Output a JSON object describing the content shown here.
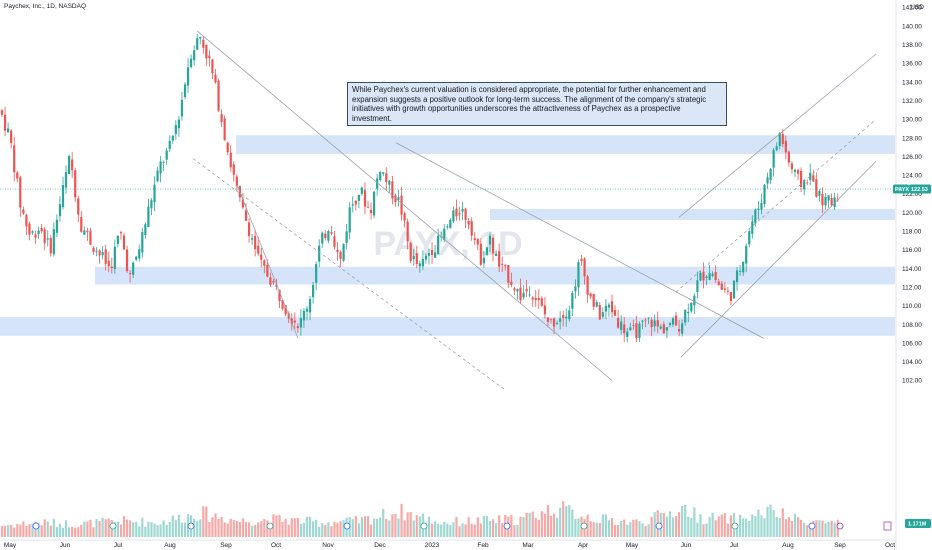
{
  "header": {
    "title": "Paychex, Inc., 1D, NASDAQ",
    "currency": "USD"
  },
  "watermark": {
    "text": "PAYX, 1D"
  },
  "note": {
    "text": "While Paychex's current valuation is considered appropriate, the potential for further enhancement and expansion suggests a positive outlook for long-term success. The alignment of the company's strategic initiatives with growth opportunities underscores the attractiveness of Paychex as a prospective investment."
  },
  "price_tag": {
    "symbol": "PAYX",
    "value": "122.53"
  },
  "volume_tag": {
    "value": "1.171M"
  },
  "colors": {
    "up": "#26a69a",
    "down": "#ef5350",
    "zone": "#d6e4f9",
    "line": "#9aa0ab",
    "current": "#26a69a",
    "tag_bg": "#26a69a",
    "vol_tag_bg": "#26a69a"
  },
  "chart_data": {
    "type": "candlestick",
    "y_axis": {
      "ticks": [
        "142.00",
        "140.00",
        "138.00",
        "136.00",
        "134.00",
        "132.00",
        "130.00",
        "128.00",
        "126.00",
        "124.00",
        "122.00",
        "120.00",
        "118.00",
        "116.00",
        "114.00",
        "112.00",
        "110.00",
        "108.00",
        "106.00",
        "104.00",
        "102.00"
      ],
      "range": [
        101,
        143
      ]
    },
    "x_axis": {
      "ticks": [
        "May",
        "Jun",
        "Jul",
        "Aug",
        "Sep",
        "Oct",
        "Nov",
        "Dec",
        "2023",
        "Feb",
        "Mar",
        "Apr",
        "May",
        "Jun",
        "Jul",
        "Aug",
        "Sep",
        "Oct"
      ]
    },
    "current_price": 122.53,
    "zones": [
      {
        "low": 126.3,
        "high": 128.3
      },
      {
        "low": 119.2,
        "high": 120.4
      },
      {
        "low": 112.3,
        "high": 114.2
      },
      {
        "low": 106.8,
        "high": 108.8
      }
    ],
    "price_path": [
      [
        0,
        131
      ],
      [
        10,
        128
      ],
      [
        20,
        121
      ],
      [
        30,
        117.5
      ],
      [
        40,
        118.5
      ],
      [
        50,
        116
      ],
      [
        60,
        121
      ],
      [
        70,
        126
      ],
      [
        80,
        119
      ],
      [
        90,
        117
      ],
      [
        100,
        115.5
      ],
      [
        110,
        114
      ],
      [
        120,
        118
      ],
      [
        130,
        113
      ],
      [
        140,
        116.5
      ],
      [
        150,
        121
      ],
      [
        160,
        125
      ],
      [
        170,
        127
      ],
      [
        180,
        131
      ],
      [
        190,
        137
      ],
      [
        200,
        139
      ],
      [
        210,
        136
      ],
      [
        220,
        131
      ],
      [
        230,
        125.5
      ],
      [
        240,
        121
      ],
      [
        250,
        118
      ],
      [
        260,
        114.5
      ],
      [
        270,
        113
      ],
      [
        280,
        111
      ],
      [
        290,
        109
      ],
      [
        300,
        108
      ],
      [
        310,
        111
      ],
      [
        320,
        116.5
      ],
      [
        330,
        119
      ],
      [
        340,
        114.5
      ],
      [
        350,
        120.5
      ],
      [
        360,
        122.5
      ],
      [
        370,
        120
      ],
      [
        380,
        125
      ],
      [
        390,
        122.5
      ],
      [
        400,
        121
      ],
      [
        410,
        115.5
      ],
      [
        420,
        114
      ],
      [
        430,
        116
      ],
      [
        440,
        117
      ],
      [
        450,
        119
      ],
      [
        460,
        120.5
      ],
      [
        470,
        119
      ],
      [
        480,
        115
      ],
      [
        490,
        117
      ],
      [
        500,
        114
      ],
      [
        510,
        113
      ],
      [
        520,
        111
      ],
      [
        530,
        112
      ],
      [
        540,
        110
      ],
      [
        550,
        108
      ],
      [
        560,
        109
      ],
      [
        570,
        110
      ],
      [
        580,
        115
      ],
      [
        590,
        111
      ],
      [
        600,
        109
      ],
      [
        610,
        110
      ],
      [
        620,
        108
      ],
      [
        630,
        107
      ],
      [
        640,
        107.5
      ],
      [
        650,
        108.5
      ],
      [
        660,
        107.5
      ],
      [
        670,
        108
      ],
      [
        680,
        108
      ],
      [
        690,
        110.5
      ],
      [
        700,
        113
      ],
      [
        710,
        114
      ],
      [
        720,
        112
      ],
      [
        730,
        111
      ],
      [
        740,
        114
      ],
      [
        750,
        118.5
      ],
      [
        760,
        121
      ],
      [
        770,
        125
      ],
      [
        780,
        128.5
      ],
      [
        790,
        125
      ],
      [
        800,
        123
      ],
      [
        810,
        124
      ],
      [
        820,
        121.5
      ],
      [
        830,
        121
      ],
      [
        840,
        122.53
      ]
    ],
    "volume_path": [
      [
        0,
        0.35
      ],
      [
        40,
        0.45
      ],
      [
        80,
        0.4
      ],
      [
        120,
        0.5
      ],
      [
        160,
        0.45
      ],
      [
        200,
        0.75
      ],
      [
        240,
        0.5
      ],
      [
        280,
        0.55
      ],
      [
        320,
        0.45
      ],
      [
        360,
        0.5
      ],
      [
        400,
        0.8
      ],
      [
        440,
        0.45
      ],
      [
        480,
        0.5
      ],
      [
        520,
        0.55
      ],
      [
        556,
        0.9
      ],
      [
        600,
        0.55
      ],
      [
        640,
        0.45
      ],
      [
        684,
        0.9
      ],
      [
        700,
        0.6
      ],
      [
        740,
        0.55
      ],
      [
        770,
        0.8
      ],
      [
        800,
        0.5
      ],
      [
        840,
        0.45
      ]
    ],
    "trendlines": [
      {
        "from": [
          197,
          139.5
        ],
        "to": [
          612,
          102
        ],
        "style": "solid"
      },
      {
        "from": [
          193,
          125.8
        ],
        "to": [
          505,
          101
        ],
        "style": "dashed"
      },
      {
        "from": [
          396,
          127.5
        ],
        "to": [
          764,
          106.5
        ],
        "style": "solid"
      },
      {
        "from": [
          237,
          123
        ],
        "to": [
          298,
          106.5
        ],
        "style": "solid"
      },
      {
        "from": [
          679,
          119.5
        ],
        "to": [
          876,
          137
        ],
        "style": "solid"
      },
      {
        "from": [
          676,
          111.5
        ],
        "to": [
          876,
          130
        ],
        "style": "dashed"
      },
      {
        "from": [
          681,
          104.5
        ],
        "to": [
          876,
          125.5
        ],
        "style": "solid"
      }
    ]
  }
}
